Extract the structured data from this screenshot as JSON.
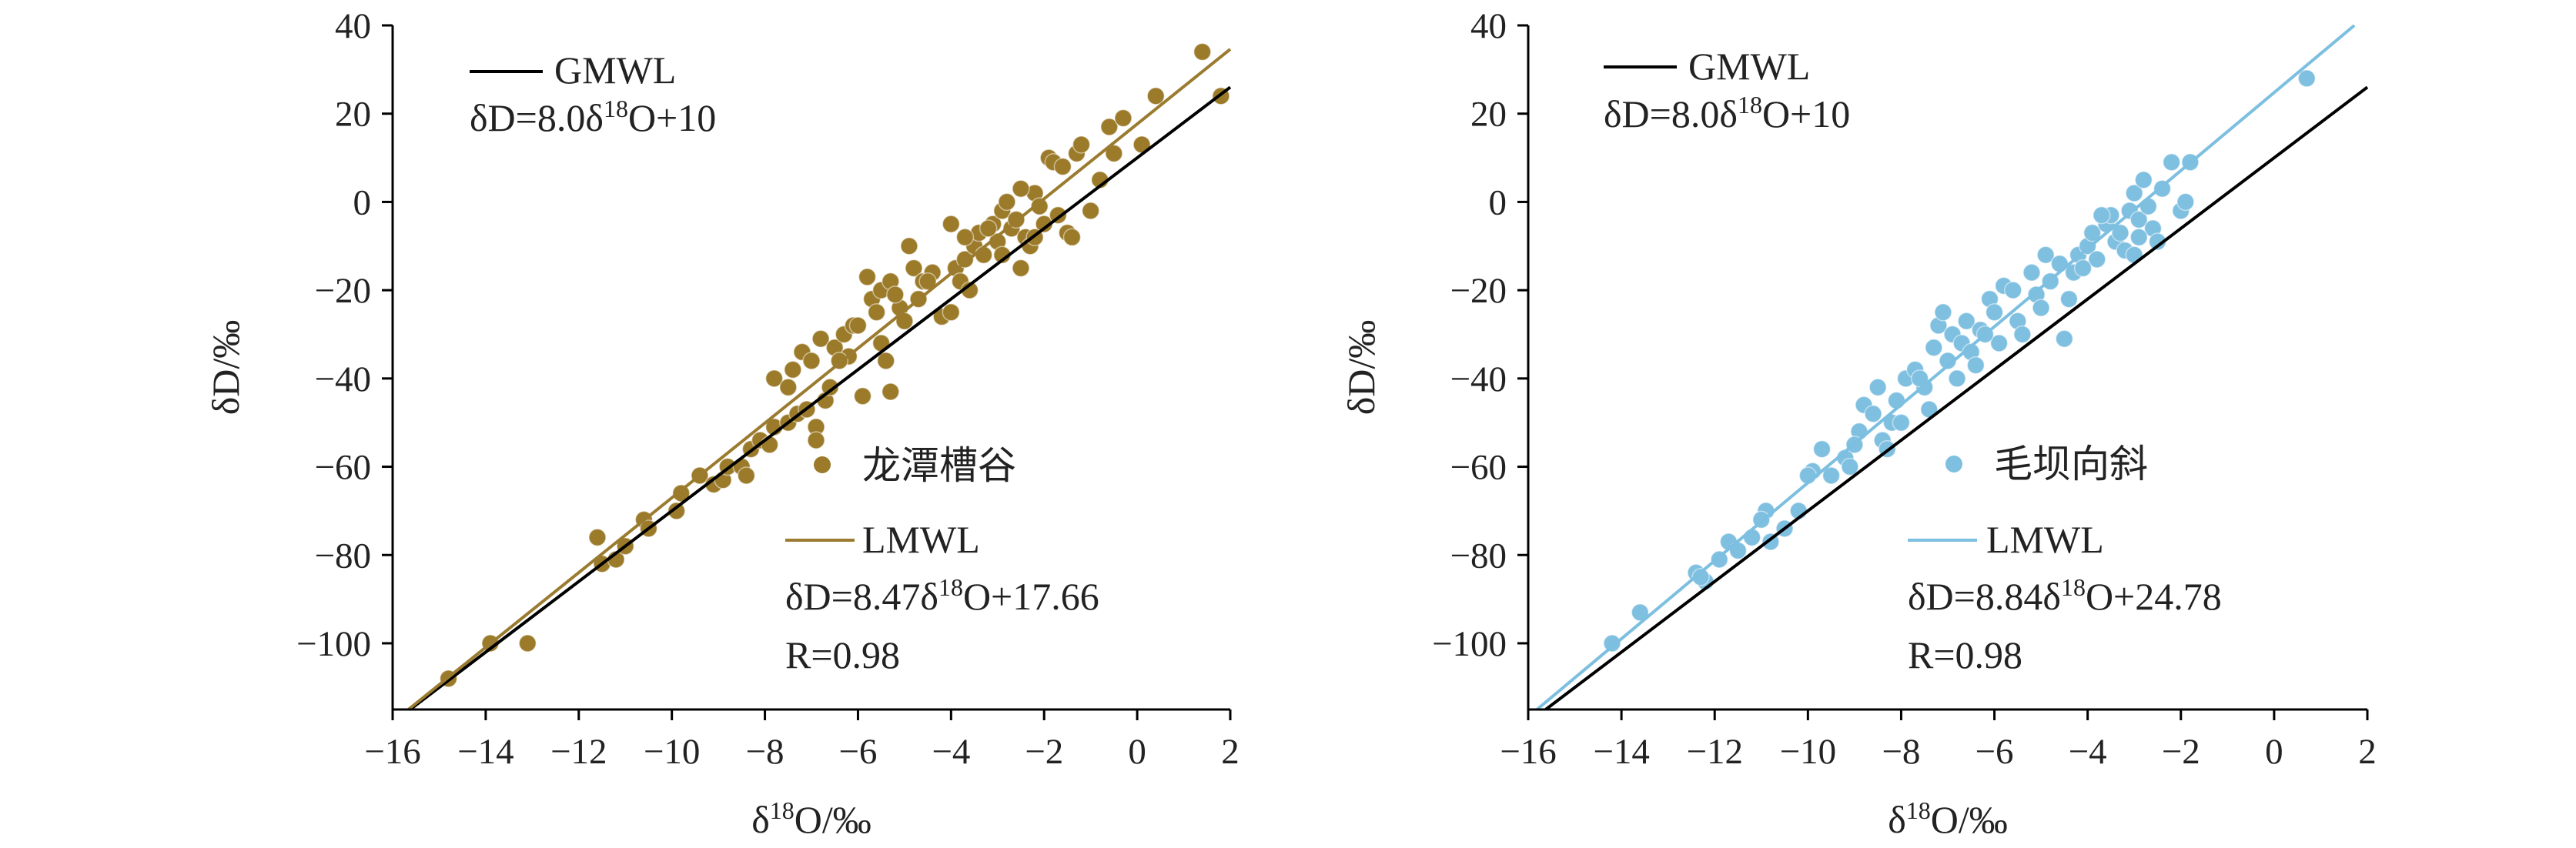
{
  "chart_data": [
    {
      "type": "scatter",
      "xlabel": "δ18O/‰",
      "ylabel": "δD/‰",
      "xlim": [
        -16,
        2
      ],
      "ylim": [
        -115,
        40
      ],
      "xticks": [
        -16,
        -14,
        -12,
        -10,
        -8,
        -6,
        -4,
        -2,
        0,
        2
      ],
      "yticks": [
        -100,
        -80,
        -60,
        -40,
        -20,
        0,
        20,
        40
      ],
      "point_color": "#9b7a2a",
      "lmwl_color": "#9a7b2f",
      "gmwl_color": "#000000",
      "series": [
        {
          "name": "龙潭槽谷",
          "type": "scatter",
          "points": [
            [
              -14.8,
              -108
            ],
            [
              -13.9,
              -100
            ],
            [
              -13.1,
              -100
            ],
            [
              -11.6,
              -76
            ],
            [
              -11.5,
              -82
            ],
            [
              -11.2,
              -81
            ],
            [
              -11.0,
              -78
            ],
            [
              -10.6,
              -72
            ],
            [
              -10.5,
              -74
            ],
            [
              -9.9,
              -70
            ],
            [
              -9.8,
              -66
            ],
            [
              -9.4,
              -62
            ],
            [
              -9.1,
              -64
            ],
            [
              -8.9,
              -63
            ],
            [
              -8.8,
              -60
            ],
            [
              -8.5,
              -60
            ],
            [
              -8.4,
              -62
            ],
            [
              -8.3,
              -56
            ],
            [
              -8.1,
              -54
            ],
            [
              -7.9,
              -55
            ],
            [
              -7.8,
              -51
            ],
            [
              -7.5,
              -50
            ],
            [
              -7.3,
              -48
            ],
            [
              -7.1,
              -47
            ],
            [
              -6.9,
              -51
            ],
            [
              -6.7,
              -45
            ],
            [
              -6.6,
              -42
            ],
            [
              -6.9,
              -54
            ],
            [
              -7.8,
              -40
            ],
            [
              -7.5,
              -42
            ],
            [
              -7.2,
              -34
            ],
            [
              -7.0,
              -36
            ],
            [
              -6.8,
              -31
            ],
            [
              -6.5,
              -33
            ],
            [
              -6.3,
              -30
            ],
            [
              -6.2,
              -35
            ],
            [
              -6.1,
              -28
            ],
            [
              -5.9,
              -44
            ],
            [
              -5.5,
              -32
            ],
            [
              -5.4,
              -36
            ],
            [
              -5.3,
              -43
            ],
            [
              -5.7,
              -22
            ],
            [
              -5.6,
              -25
            ],
            [
              -5.5,
              -20
            ],
            [
              -5.3,
              -18
            ],
            [
              -5.1,
              -24
            ],
            [
              -5.0,
              -27
            ],
            [
              -4.8,
              -15
            ],
            [
              -4.7,
              -22
            ],
            [
              -4.6,
              -18
            ],
            [
              -4.4,
              -16
            ],
            [
              -4.2,
              -26
            ],
            [
              -4.0,
              -25
            ],
            [
              -3.9,
              -15
            ],
            [
              -3.8,
              -18
            ],
            [
              -3.7,
              -13
            ],
            [
              -3.6,
              -20
            ],
            [
              -3.5,
              -10
            ],
            [
              -3.4,
              -7
            ],
            [
              -3.3,
              -12
            ],
            [
              -3.1,
              -5
            ],
            [
              -3.0,
              -9
            ],
            [
              -2.9,
              -2
            ],
            [
              -2.8,
              0
            ],
            [
              -2.7,
              -6
            ],
            [
              -2.6,
              -4
            ],
            [
              -2.5,
              -15
            ],
            [
              -2.4,
              -8
            ],
            [
              -2.3,
              -10
            ],
            [
              -2.2,
              2
            ],
            [
              -2.1,
              -1
            ],
            [
              -2.0,
              -5
            ],
            [
              -1.9,
              10
            ],
            [
              -1.8,
              9
            ],
            [
              -1.7,
              -3
            ],
            [
              -1.6,
              8
            ],
            [
              -1.5,
              -7
            ],
            [
              -1.4,
              -8
            ],
            [
              -1.3,
              11
            ],
            [
              -1.2,
              13
            ],
            [
              -1.0,
              -2
            ],
            [
              -0.8,
              5
            ],
            [
              -0.6,
              17
            ],
            [
              -0.5,
              11
            ],
            [
              -0.3,
              19
            ],
            [
              0.1,
              13
            ],
            [
              0.4,
              24
            ],
            [
              1.4,
              34
            ],
            [
              1.8,
              24
            ],
            [
              -4.0,
              -5
            ],
            [
              -4.5,
              -18
            ],
            [
              -5.8,
              -17
            ],
            [
              -6.0,
              -28
            ],
            [
              -6.4,
              -36
            ],
            [
              -3.2,
              -6
            ],
            [
              -2.5,
              3
            ],
            [
              -2.2,
              -8
            ],
            [
              -2.9,
              -12
            ],
            [
              -3.7,
              -8
            ],
            [
              -4.9,
              -10
            ],
            [
              -5.2,
              -21
            ],
            [
              -7.4,
              -38
            ]
          ]
        },
        {
          "name": "LMWL",
          "type": "line",
          "equation": "δD=8.47δ18O+17.66",
          "slope": 8.47,
          "intercept": 17.66,
          "r": "R=0.98"
        },
        {
          "name": "GMWL",
          "type": "line",
          "equation": "δD=8.0δ18O+10",
          "slope": 8.0,
          "intercept": 10
        }
      ]
    },
    {
      "type": "scatter",
      "xlabel": "δ18O/‰",
      "ylabel": "δD/‰",
      "xlim": [
        -16,
        2
      ],
      "ylim": [
        -115,
        40
      ],
      "xticks": [
        -16,
        -14,
        -12,
        -10,
        -8,
        -6,
        -4,
        -2,
        0,
        2
      ],
      "yticks": [
        -100,
        -80,
        -60,
        -40,
        -20,
        0,
        20,
        40
      ],
      "point_color": "#7fbfe0",
      "lmwl_color": "#7cbfe0",
      "gmwl_color": "#000000",
      "series": [
        {
          "name": "毛坝向斜",
          "type": "scatter",
          "points": [
            [
              -14.2,
              -100
            ],
            [
              -13.6,
              -93
            ],
            [
              -12.4,
              -84
            ],
            [
              -12.2,
              -86
            ],
            [
              -11.9,
              -81
            ],
            [
              -11.7,
              -77
            ],
            [
              -11.5,
              -79
            ],
            [
              -11.2,
              -76
            ],
            [
              -10.9,
              -70
            ],
            [
              -10.8,
              -77
            ],
            [
              -10.5,
              -74
            ],
            [
              -10.2,
              -70
            ],
            [
              -9.9,
              -61
            ],
            [
              -9.7,
              -56
            ],
            [
              -9.5,
              -62
            ],
            [
              -9.2,
              -58
            ],
            [
              -9.1,
              -60
            ],
            [
              -8.9,
              -52
            ],
            [
              -8.8,
              -46
            ],
            [
              -8.6,
              -48
            ],
            [
              -8.5,
              -42
            ],
            [
              -8.4,
              -54
            ],
            [
              -8.3,
              -56
            ],
            [
              -8.2,
              -50
            ],
            [
              -8.1,
              -45
            ],
            [
              -7.9,
              -40
            ],
            [
              -7.7,
              -38
            ],
            [
              -7.5,
              -42
            ],
            [
              -7.4,
              -47
            ],
            [
              -7.3,
              -33
            ],
            [
              -7.2,
              -28
            ],
            [
              -7.1,
              -25
            ],
            [
              -7.0,
              -36
            ],
            [
              -6.9,
              -30
            ],
            [
              -6.8,
              -40
            ],
            [
              -6.7,
              -32
            ],
            [
              -6.6,
              -27
            ],
            [
              -6.5,
              -34
            ],
            [
              -6.3,
              -29
            ],
            [
              -6.1,
              -22
            ],
            [
              -6.0,
              -25
            ],
            [
              -5.9,
              -32
            ],
            [
              -5.8,
              -19
            ],
            [
              -5.6,
              -20
            ],
            [
              -5.5,
              -27
            ],
            [
              -5.4,
              -30
            ],
            [
              -5.2,
              -16
            ],
            [
              -5.1,
              -21
            ],
            [
              -4.9,
              -12
            ],
            [
              -4.8,
              -18
            ],
            [
              -4.6,
              -14
            ],
            [
              -4.5,
              -31
            ],
            [
              -4.3,
              -16
            ],
            [
              -4.2,
              -12
            ],
            [
              -4.0,
              -10
            ],
            [
              -3.9,
              -7
            ],
            [
              -3.8,
              -13
            ],
            [
              -3.6,
              -5
            ],
            [
              -3.5,
              -3
            ],
            [
              -3.4,
              -9
            ],
            [
              -3.3,
              -7
            ],
            [
              -3.2,
              -11
            ],
            [
              -3.1,
              -2
            ],
            [
              -3.0,
              2
            ],
            [
              -2.9,
              -4
            ],
            [
              -2.8,
              5
            ],
            [
              -2.7,
              -1
            ],
            [
              -2.6,
              -6
            ],
            [
              -2.5,
              -9
            ],
            [
              -2.4,
              3
            ],
            [
              -2.2,
              9
            ],
            [
              -2.0,
              -2
            ],
            [
              -1.8,
              9
            ],
            [
              -1.9,
              0
            ],
            [
              0.7,
              28
            ],
            [
              -3.7,
              -3
            ],
            [
              -4.4,
              -22
            ],
            [
              -5.0,
              -24
            ],
            [
              -6.2,
              -30
            ],
            [
              -7.6,
              -40
            ],
            [
              -8.0,
              -50
            ],
            [
              -9.0,
              -55
            ],
            [
              -10.0,
              -62
            ],
            [
              -11.0,
              -72
            ],
            [
              -12.3,
              -85
            ],
            [
              -6.4,
              -37
            ],
            [
              -3.0,
              -12
            ],
            [
              -4.1,
              -15
            ],
            [
              -2.9,
              -8
            ]
          ]
        },
        {
          "name": "LMWL",
          "type": "line",
          "equation": "δD=8.84δ18O+24.78",
          "slope": 8.84,
          "intercept": 24.78,
          "r": "R=0.98"
        },
        {
          "name": "GMWL",
          "type": "line",
          "equation": "δD=8.0δ18O+10",
          "slope": 8.0,
          "intercept": 10
        }
      ]
    }
  ]
}
